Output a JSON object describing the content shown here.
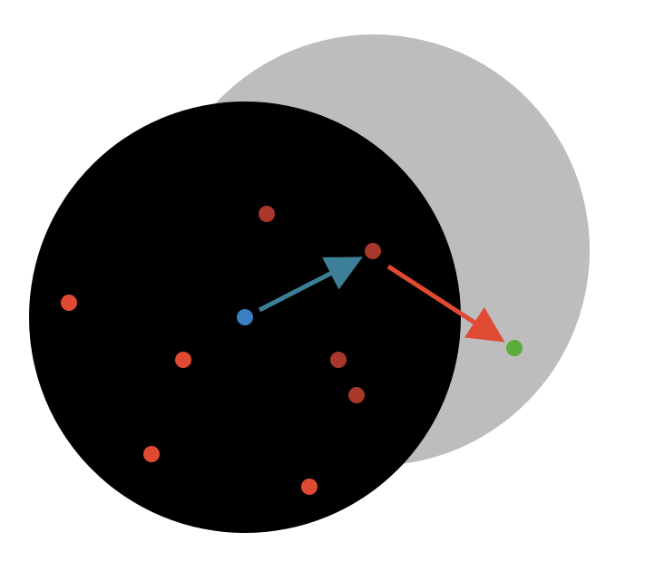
{
  "colors": {
    "background": "#ffffff",
    "outer_circle": "#bdbdbd",
    "inner_circle": "#000000",
    "point_light_red": "#e04a33",
    "point_dark_red": "#a9372a",
    "center_point": "#3a7fc2",
    "target_point": "#5aad3a",
    "arrow_blue": "#3d7f96",
    "arrow_red": "#e04a33"
  },
  "legend": []
}
